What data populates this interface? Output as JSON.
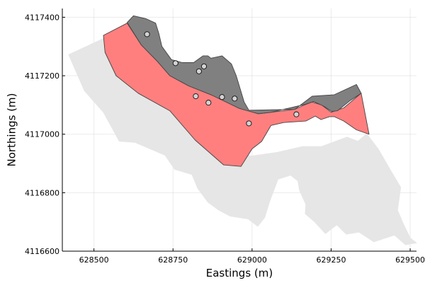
{
  "chart_data": {
    "type": "area",
    "title": "",
    "xlabel": "Eastings (m)",
    "ylabel": "Northings (m)",
    "xlim": [
      628400,
      629520
    ],
    "ylim": [
      4116600,
      4117430
    ],
    "xticks": [
      628500,
      628750,
      629000,
      629250,
      629500
    ],
    "yticks": [
      4116600,
      4116800,
      4117000,
      4117200,
      4117400
    ],
    "grid": true,
    "legend": "none",
    "series": [
      {
        "color": "#e6e6e6",
        "outline": "#e6e6e6",
        "points": [
          [
            628420,
            4117272
          ],
          [
            628605,
            4117365
          ],
          [
            628575,
            4117190
          ],
          [
            628670,
            4117145
          ],
          [
            628760,
            4117080
          ],
          [
            628835,
            4117018
          ],
          [
            628935,
            4116960
          ],
          [
            628995,
            4116925
          ],
          [
            629080,
            4116938
          ],
          [
            629160,
            4116958
          ],
          [
            629220,
            4116958
          ],
          [
            629300,
            4116990
          ],
          [
            629335,
            4116976
          ],
          [
            629362,
            4117002
          ],
          [
            629400,
            4116948
          ],
          [
            629435,
            4116882
          ],
          [
            629470,
            4116818
          ],
          [
            629460,
            4116740
          ],
          [
            629480,
            4116690
          ],
          [
            629500,
            4116645
          ],
          [
            629520,
            4116628
          ],
          [
            629485,
            4116622
          ],
          [
            629450,
            4116655
          ],
          [
            629385,
            4116632
          ],
          [
            629338,
            4116665
          ],
          [
            629298,
            4116658
          ],
          [
            629268,
            4116690
          ],
          [
            629232,
            4116660
          ],
          [
            629198,
            4116700
          ],
          [
            629168,
            4116728
          ],
          [
            629170,
            4116760
          ],
          [
            629150,
            4116808
          ],
          [
            629145,
            4116840
          ],
          [
            629122,
            4116860
          ],
          [
            629082,
            4116846
          ],
          [
            629055,
            4116768
          ],
          [
            629040,
            4116715
          ],
          [
            629018,
            4116685
          ],
          [
            628988,
            4116710
          ],
          [
            628930,
            4116720
          ],
          [
            628895,
            4116740
          ],
          [
            628860,
            4116768
          ],
          [
            628828,
            4116815
          ],
          [
            628810,
            4116862
          ],
          [
            628755,
            4116880
          ],
          [
            628725,
            4116928
          ],
          [
            628630,
            4116972
          ],
          [
            628580,
            4116976
          ],
          [
            628530,
            4117075
          ],
          [
            628470,
            4117148
          ]
        ]
      },
      {
        "color": "#ff7f7f",
        "outline": "#444444",
        "points": [
          [
            628530,
            4117338
          ],
          [
            628605,
            4117380
          ],
          [
            628650,
            4117305
          ],
          [
            628700,
            4117250
          ],
          [
            628740,
            4117200
          ],
          [
            628800,
            4117165
          ],
          [
            628870,
            4117135
          ],
          [
            628960,
            4117090
          ],
          [
            629020,
            4117070
          ],
          [
            629060,
            4117075
          ],
          [
            629135,
            4117085
          ],
          [
            629165,
            4117100
          ],
          [
            629190,
            4117110
          ],
          [
            629220,
            4117100
          ],
          [
            629250,
            4117075
          ],
          [
            629290,
            4117090
          ],
          [
            629345,
            4117140
          ],
          [
            629370,
            4117000
          ],
          [
            629330,
            4117015
          ],
          [
            629290,
            4117045
          ],
          [
            629260,
            4117060
          ],
          [
            629245,
            4117060
          ],
          [
            629218,
            4117050
          ],
          [
            629200,
            4117062
          ],
          [
            629170,
            4117045
          ],
          [
            629100,
            4117040
          ],
          [
            629060,
            4117030
          ],
          [
            629030,
            4116975
          ],
          [
            629000,
            4116950
          ],
          [
            628965,
            4116890
          ],
          [
            628910,
            4116895
          ],
          [
            628820,
            4116980
          ],
          [
            628740,
            4117080
          ],
          [
            628640,
            4117140
          ],
          [
            628570,
            4117200
          ],
          [
            628535,
            4117280
          ]
        ]
      },
      {
        "color": "#808080",
        "outline": "#444444",
        "points": [
          [
            628605,
            4117382
          ],
          [
            628625,
            4117405
          ],
          [
            628665,
            4117395
          ],
          [
            628695,
            4117380
          ],
          [
            628705,
            4117345
          ],
          [
            628715,
            4117300
          ],
          [
            628745,
            4117255
          ],
          [
            628780,
            4117245
          ],
          [
            628800,
            4117245
          ],
          [
            628815,
            4117245
          ],
          [
            628845,
            4117268
          ],
          [
            628860,
            4117268
          ],
          [
            628870,
            4117260
          ],
          [
            628905,
            4117268
          ],
          [
            628935,
            4117240
          ],
          [
            628950,
            4117200
          ],
          [
            628975,
            4117110
          ],
          [
            628990,
            4117082
          ],
          [
            629135,
            4117085
          ],
          [
            629190,
            4117130
          ],
          [
            629260,
            4117135
          ],
          [
            629330,
            4117170
          ],
          [
            629345,
            4117140
          ],
          [
            629310,
            4117115
          ],
          [
            629270,
            4117080
          ],
          [
            629252,
            4117078
          ],
          [
            629228,
            4117095
          ],
          [
            629195,
            4117112
          ],
          [
            629168,
            4117102
          ],
          [
            629060,
            4117075
          ],
          [
            629020,
            4117070
          ],
          [
            628960,
            4117088
          ],
          [
            628870,
            4117135
          ],
          [
            628800,
            4117165
          ],
          [
            628740,
            4117200
          ],
          [
            628700,
            4117250
          ],
          [
            628650,
            4117305
          ]
        ]
      }
    ],
    "markers": {
      "fill": "#d3d3d3",
      "edge": "#111111",
      "points": [
        [
          628668,
          4117342
        ],
        [
          628758,
          4117243
        ],
        [
          628832,
          4117215
        ],
        [
          628848,
          4117232
        ],
        [
          628822,
          4117130
        ],
        [
          628862,
          4117108
        ],
        [
          628905,
          4117127
        ],
        [
          628945,
          4117122
        ],
        [
          628990,
          4117037
        ],
        [
          629140,
          4117068
        ]
      ]
    }
  }
}
